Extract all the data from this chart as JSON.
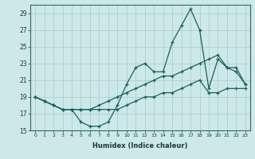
{
  "xlabel": "Humidex (Indice chaleur)",
  "bg_color": "#cce8e8",
  "grid_color": "#aacaca",
  "line_color": "#1a6060",
  "xlim": [
    -0.5,
    23.5
  ],
  "ylim": [
    15,
    30
  ],
  "yticks": [
    15,
    17,
    19,
    21,
    23,
    25,
    27,
    29
  ],
  "xticks": [
    0,
    1,
    2,
    3,
    4,
    5,
    6,
    7,
    8,
    9,
    10,
    11,
    12,
    13,
    14,
    15,
    16,
    17,
    18,
    19,
    20,
    21,
    22,
    23
  ],
  "line1_x": [
    0,
    1,
    2,
    3,
    4,
    5,
    6,
    7,
    8,
    9,
    10,
    11,
    12,
    13,
    14,
    15,
    16,
    17,
    18,
    19,
    20,
    21,
    22,
    23
  ],
  "line1_y": [
    19.0,
    18.5,
    18.0,
    17.5,
    17.5,
    16.0,
    15.5,
    15.5,
    16.0,
    18.0,
    20.5,
    22.5,
    23.0,
    22.0,
    22.0,
    25.5,
    27.5,
    29.5,
    27.0,
    20.0,
    23.5,
    22.5,
    22.0,
    20.5
  ],
  "line2_x": [
    0,
    1,
    2,
    3,
    4,
    5,
    6,
    7,
    8,
    9,
    10,
    11,
    12,
    13,
    14,
    15,
    16,
    17,
    18,
    19,
    20,
    21,
    22,
    23
  ],
  "line2_y": [
    19.0,
    18.5,
    18.0,
    17.5,
    17.5,
    17.5,
    17.5,
    18.0,
    18.5,
    19.0,
    19.5,
    20.0,
    20.5,
    21.0,
    21.5,
    21.5,
    22.0,
    22.5,
    23.0,
    23.5,
    24.0,
    22.5,
    22.5,
    20.5
  ],
  "line3_x": [
    0,
    1,
    2,
    3,
    4,
    5,
    6,
    7,
    8,
    9,
    10,
    11,
    12,
    13,
    14,
    15,
    16,
    17,
    18,
    19,
    20,
    21,
    22,
    23
  ],
  "line3_y": [
    19.0,
    18.5,
    18.0,
    17.5,
    17.5,
    17.5,
    17.5,
    17.5,
    17.5,
    17.5,
    18.0,
    18.5,
    19.0,
    19.0,
    19.5,
    19.5,
    20.0,
    20.5,
    21.0,
    19.5,
    19.5,
    20.0,
    20.0,
    20.0
  ]
}
